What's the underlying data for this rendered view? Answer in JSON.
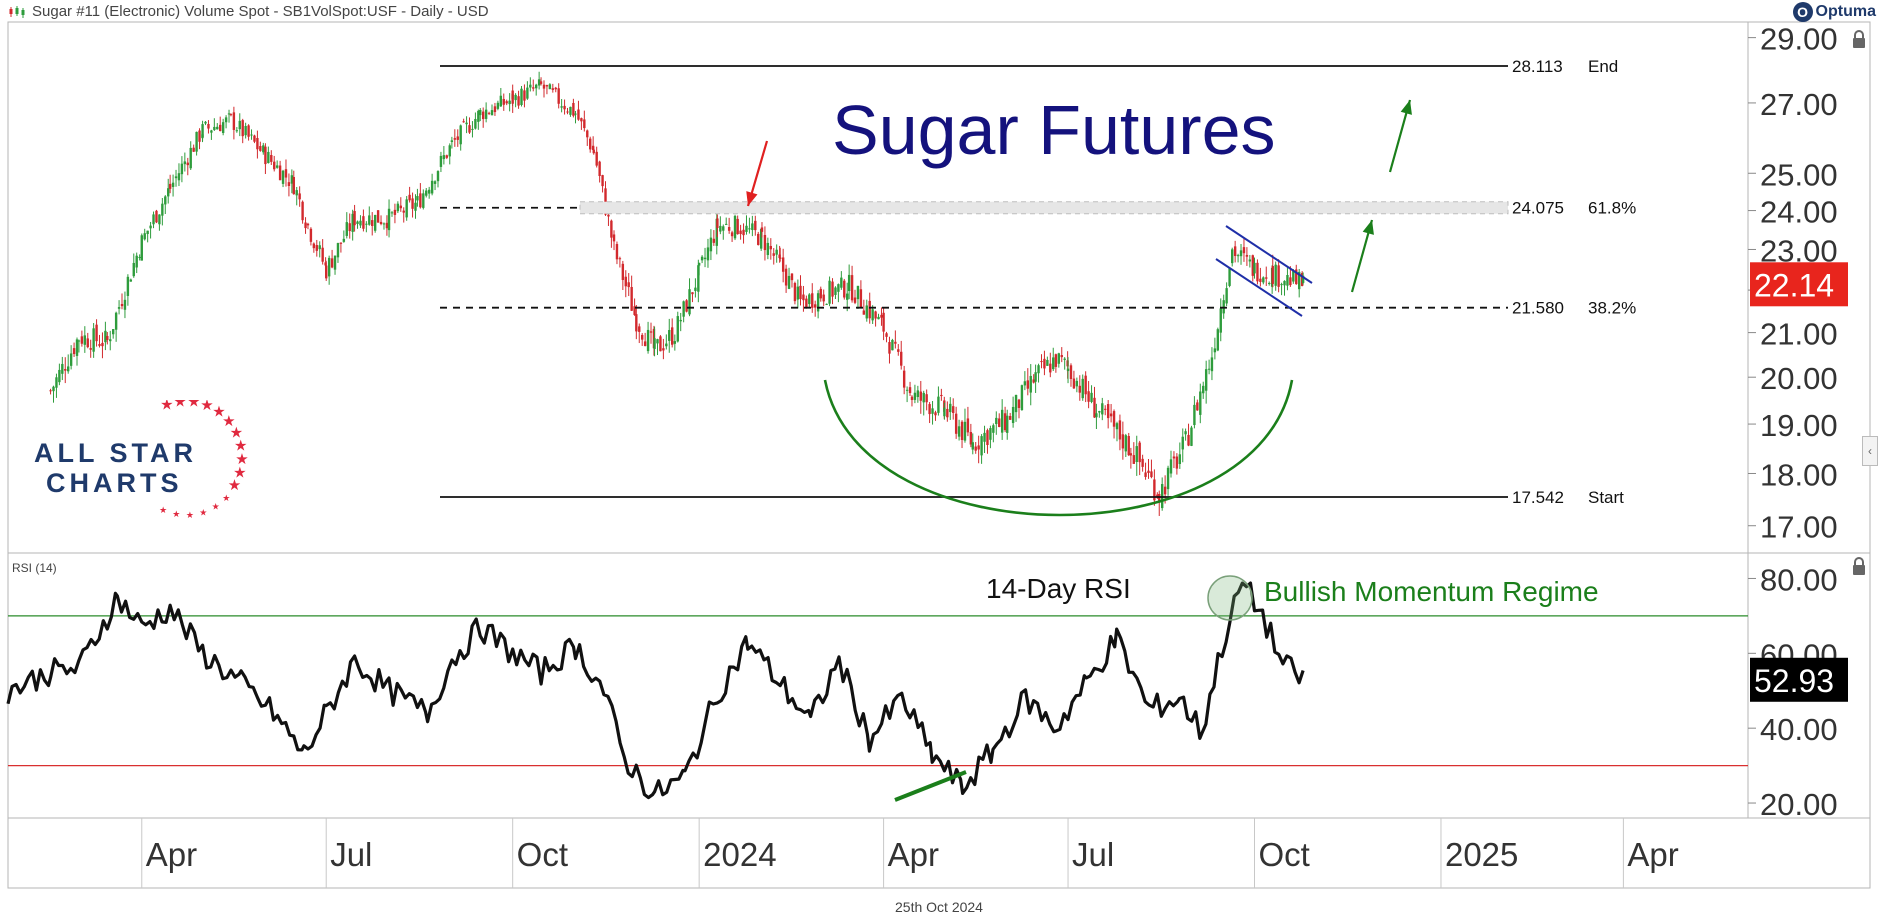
{
  "header": {
    "title": "Sugar #11 (Electronic) Volume Spot - SB1VolSpot:USF - Daily - USD",
    "symbol_icon": "candlestick-icon"
  },
  "brand": {
    "name": "Optuma",
    "icon": "optuma-logo-icon"
  },
  "date_footer": "25th Oct 2024",
  "logo": {
    "line1": "ALL STAR",
    "line2": "CHARTS",
    "star_color": "#e0293f",
    "text_color": "#1f3a6b"
  },
  "colors": {
    "candle_up": "#2e9c3c",
    "candle_down": "#d2292d",
    "annotation_green": "#1b7f1b",
    "annotation_red": "#e02020",
    "title_navy": "#14127d",
    "price_badge": "#e8251d",
    "rsi_badge": "#000000",
    "overbought_line": "#2a8c2a",
    "oversold_line": "#d93030"
  },
  "chart_data": [
    {
      "type": "candlestick",
      "title": "Sugar Futures",
      "y_scale": "log",
      "ylim": [
        16.5,
        29.5
      ],
      "y_ticks": [
        "29.00",
        "27.00",
        "25.00",
        "24.00",
        "23.00",
        "22.00",
        "21.00",
        "20.00",
        "19.00",
        "18.00",
        "17.00"
      ],
      "x_ticks": [
        "Apr",
        "Jul",
        "Oct",
        "2024",
        "Apr",
        "Jul",
        "Oct",
        "2025",
        "Apr"
      ],
      "x_tick_dates": [
        "2023-04-01",
        "2023-07-01",
        "2023-10-01",
        "2024-01-01",
        "2024-04-01",
        "2024-07-01",
        "2024-10-01",
        "2025-01-01",
        "2025-04-01"
      ],
      "x_range": [
        "2023-01-25",
        "2025-05-31"
      ],
      "last_price": "22.14",
      "closes_sampled": {
        "dates": [
          "2023-02-15",
          "2023-03-01",
          "2023-03-15",
          "2023-04-01",
          "2023-04-15",
          "2023-05-01",
          "2023-05-15",
          "2023-06-01",
          "2023-06-15",
          "2023-06-22",
          "2023-07-01",
          "2023-07-15",
          "2023-08-01",
          "2023-08-15",
          "2023-09-01",
          "2023-09-15",
          "2023-10-01",
          "2023-10-15",
          "2023-11-01",
          "2023-11-10",
          "2023-11-20",
          "2023-12-01",
          "2023-12-10",
          "2023-12-20",
          "2024-01-01",
          "2024-01-10",
          "2024-01-20",
          "2024-02-01",
          "2024-02-10",
          "2024-02-20",
          "2024-03-01",
          "2024-03-15",
          "2024-04-01",
          "2024-04-15",
          "2024-05-01",
          "2024-05-15",
          "2024-06-01",
          "2024-06-15",
          "2024-06-25",
          "2024-07-01",
          "2024-07-15",
          "2024-08-01",
          "2024-08-15",
          "2024-08-28",
          "2024-09-10",
          "2024-09-20",
          "2024-10-01",
          "2024-10-10",
          "2024-10-25"
        ],
        "values": [
          19.7,
          20.9,
          20.8,
          23.2,
          24.6,
          26.2,
          26.5,
          25.5,
          24.7,
          23.6,
          22.5,
          23.8,
          23.8,
          24.2,
          25.8,
          26.7,
          27.1,
          27.5,
          26.7,
          25.6,
          23.0,
          21.3,
          20.6,
          21.0,
          22.4,
          23.6,
          23.6,
          23.3,
          22.6,
          21.7,
          21.9,
          22.1,
          21.1,
          19.6,
          19.3,
          18.6,
          19.1,
          20.0,
          20.4,
          20.2,
          19.3,
          18.5,
          17.6,
          18.6,
          20.5,
          23.0,
          22.5,
          22.4,
          22.14
        ]
      },
      "levels": [
        {
          "value": 28.113,
          "label": "28.113",
          "tag": "End",
          "style": "solid"
        },
        {
          "value": 24.075,
          "label": "24.075",
          "tag": "61.8%",
          "style": "dashed"
        },
        {
          "value": 21.58,
          "label": "21.580",
          "tag": "38.2%",
          "style": "dashed"
        },
        {
          "value": 17.542,
          "label": "17.542",
          "tag": "Start",
          "style": "solid"
        }
      ]
    },
    {
      "type": "line",
      "title": "14-Day RSI",
      "panel_label": "RSI (14)",
      "ylim": [
        16,
        86
      ],
      "y_ticks": [
        "80.00",
        "60.00",
        "40.00",
        "20.00"
      ],
      "overbought": 70,
      "oversold": 30,
      "last_value": "52.93",
      "annotation": "Bullish Momentum Regime",
      "sampled": {
        "dates": [
          "2023-01-25",
          "2023-02-15",
          "2023-03-01",
          "2023-03-20",
          "2023-04-01",
          "2023-04-15",
          "2023-05-01",
          "2023-05-20",
          "2023-06-05",
          "2023-06-20",
          "2023-07-01",
          "2023-07-15",
          "2023-08-01",
          "2023-08-20",
          "2023-09-01",
          "2023-09-15",
          "2023-10-01",
          "2023-10-15",
          "2023-11-01",
          "2023-11-15",
          "2023-11-25",
          "2023-12-10",
          "2023-12-25",
          "2024-01-10",
          "2024-01-25",
          "2024-02-10",
          "2024-02-25",
          "2024-03-10",
          "2024-03-25",
          "2024-04-10",
          "2024-04-25",
          "2024-05-10",
          "2024-05-25",
          "2024-06-10",
          "2024-06-25",
          "2024-07-10",
          "2024-07-25",
          "2024-08-10",
          "2024-08-25",
          "2024-09-05",
          "2024-09-15",
          "2024-09-25",
          "2024-10-05",
          "2024-10-15",
          "2024-10-25"
        ],
        "values": [
          50,
          55,
          56,
          75,
          67,
          72,
          60,
          52,
          44,
          33,
          44,
          58,
          50,
          44,
          58,
          67,
          60,
          55,
          62,
          50,
          32,
          22,
          27,
          49,
          63,
          52,
          42,
          58,
          37,
          48,
          33,
          24,
          34,
          48,
          40,
          52,
          64,
          45,
          48,
          39,
          62,
          79,
          70,
          57,
          53
        ]
      }
    }
  ],
  "annotations": {
    "rsi_divergence_line": "green-trendline",
    "rounding_bottom": "green-arc",
    "flag_channel": "blue-channel",
    "arrows": [
      "red-down-arrow",
      "green-up-arrow",
      "green-up-arrow"
    ]
  }
}
